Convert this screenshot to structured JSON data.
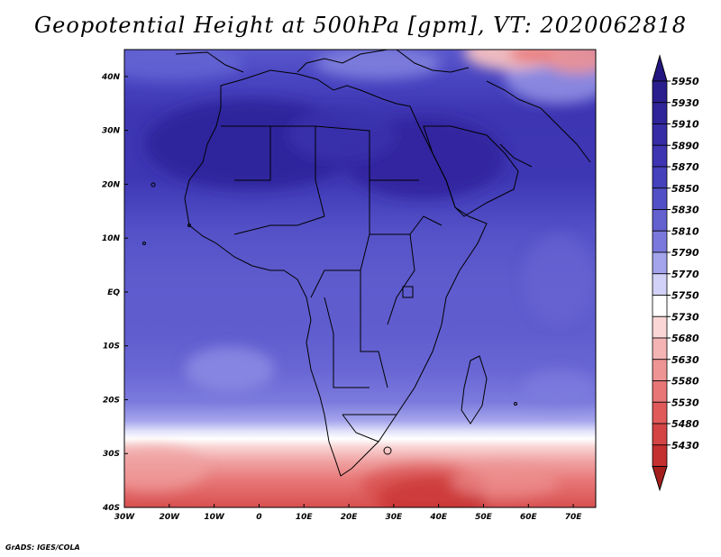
{
  "title": "Geopotential Height at 500hPa [gpm], VT: 2020062818",
  "footer": "GrADS: IGES/COLA",
  "map": {
    "variable": "Geopotential Height",
    "level": "500hPa",
    "units": "gpm",
    "valid_time": "2020062818",
    "lon_range": [
      -30,
      75
    ],
    "lat_range": [
      -40,
      45
    ],
    "lon_ticks": [
      {
        "value": -30,
        "label": "30W"
      },
      {
        "value": -20,
        "label": "20W"
      },
      {
        "value": -10,
        "label": "10W"
      },
      {
        "value": 0,
        "label": "0"
      },
      {
        "value": 10,
        "label": "10E"
      },
      {
        "value": 20,
        "label": "20E"
      },
      {
        "value": 30,
        "label": "30E"
      },
      {
        "value": 40,
        "label": "40E"
      },
      {
        "value": 50,
        "label": "50E"
      },
      {
        "value": 60,
        "label": "60E"
      },
      {
        "value": 70,
        "label": "70E"
      }
    ],
    "lat_ticks": [
      {
        "value": 40,
        "label": "40N"
      },
      {
        "value": 30,
        "label": "30N"
      },
      {
        "value": 20,
        "label": "20N"
      },
      {
        "value": 10,
        "label": "10N"
      },
      {
        "value": 0,
        "label": "EQ"
      },
      {
        "value": -10,
        "label": "10S"
      },
      {
        "value": -20,
        "label": "20S"
      },
      {
        "value": -30,
        "label": "30S"
      },
      {
        "value": -40,
        "label": "40S"
      }
    ]
  },
  "colorbar": {
    "levels": [
      {
        "label": "5950",
        "color": "#2a1e8e"
      },
      {
        "label": "5930",
        "color": "#2f249a"
      },
      {
        "label": "5910",
        "color": "#362ca6"
      },
      {
        "label": "5890",
        "color": "#3d35b2"
      },
      {
        "label": "5870",
        "color": "#4540bc"
      },
      {
        "label": "5850",
        "color": "#5250c6"
      },
      {
        "label": "5830",
        "color": "#6360d0"
      },
      {
        "label": "5810",
        "color": "#7a78dc"
      },
      {
        "label": "5790",
        "color": "#a4a4ec"
      },
      {
        "label": "5770",
        "color": "#d2d2f8"
      },
      {
        "label": "5750",
        "color": "#ffffff"
      },
      {
        "label": "5730",
        "color": "#fad6d6"
      },
      {
        "label": "5680",
        "color": "#f4b4b4"
      },
      {
        "label": "5630",
        "color": "#ee9494"
      },
      {
        "label": "5580",
        "color": "#e87676"
      },
      {
        "label": "5530",
        "color": "#e05a5a"
      },
      {
        "label": "5480",
        "color": "#d44444"
      },
      {
        "label": "5430",
        "color": "#c43030"
      }
    ],
    "top_color": "#241680",
    "bottom_color": "#a41e1e"
  }
}
